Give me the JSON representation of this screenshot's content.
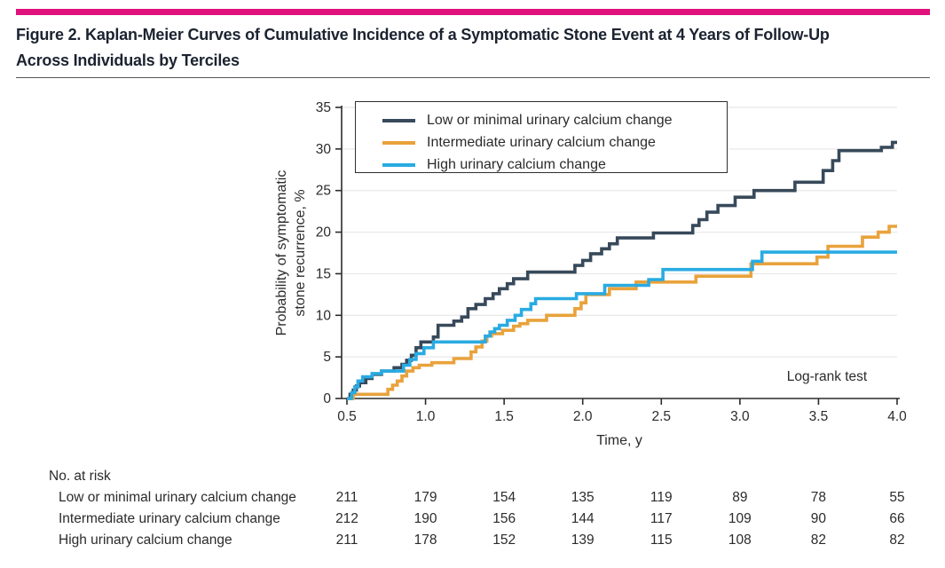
{
  "figure": {
    "title_line1": "Figure 2. Kaplan-Meier Curves of Cumulative Incidence of a Symptomatic Stone Event at 4 Years of Follow-Up",
    "title_line2": "Across Individuals by Terciles"
  },
  "colors": {
    "accent_bar": "#e0127c",
    "axis": "#2b2b2b",
    "gridline": "#e8e8e8",
    "title_text": "#1b2330"
  },
  "chart_data": {
    "type": "line",
    "subtype": "kaplan-meier-step",
    "title": "",
    "xlabel": "Time, y",
    "ylabel_lines": [
      "Probability of symptomatic",
      "stone recurrence, %"
    ],
    "xlim": [
      0.5,
      4.0
    ],
    "ylim": [
      0,
      35
    ],
    "x_ticks": [
      "0.5",
      "1.0",
      "1.5",
      "2.0",
      "2.5",
      "3.0",
      "3.5",
      "4.0"
    ],
    "y_ticks": [
      0,
      5,
      10,
      15,
      20,
      25,
      30,
      35
    ],
    "grid": "horizontal",
    "legend_position": "top-left-inside-box",
    "annotation": "Log-rank test",
    "series": [
      {
        "name": "Low or minimal urinary calcium change",
        "color": "#37495a",
        "steps": [
          [
            0.5,
            0
          ],
          [
            0.52,
            0.5
          ],
          [
            0.54,
            1.0
          ],
          [
            0.56,
            1.5
          ],
          [
            0.58,
            1.9
          ],
          [
            0.62,
            2.4
          ],
          [
            0.66,
            2.9
          ],
          [
            0.72,
            3.3
          ],
          [
            0.8,
            3.7
          ],
          [
            0.85,
            4.1
          ],
          [
            0.88,
            4.6
          ],
          [
            0.91,
            5.2
          ],
          [
            0.94,
            6.1
          ],
          [
            0.97,
            6.8
          ],
          [
            1.05,
            7.4
          ],
          [
            1.08,
            8.8
          ],
          [
            1.18,
            9.3
          ],
          [
            1.23,
            9.8
          ],
          [
            1.27,
            10.8
          ],
          [
            1.32,
            11.3
          ],
          [
            1.38,
            12.0
          ],
          [
            1.43,
            12.6
          ],
          [
            1.47,
            13.2
          ],
          [
            1.52,
            13.8
          ],
          [
            1.56,
            14.4
          ],
          [
            1.65,
            15.2
          ],
          [
            1.95,
            16.0
          ],
          [
            2.0,
            16.6
          ],
          [
            2.05,
            17.4
          ],
          [
            2.12,
            18.0
          ],
          [
            2.17,
            18.6
          ],
          [
            2.22,
            19.3
          ],
          [
            2.45,
            19.9
          ],
          [
            2.7,
            20.8
          ],
          [
            2.74,
            21.5
          ],
          [
            2.79,
            22.4
          ],
          [
            2.86,
            23.2
          ],
          [
            2.97,
            24.2
          ],
          [
            3.09,
            25.0
          ],
          [
            3.35,
            26.0
          ],
          [
            3.53,
            27.4
          ],
          [
            3.59,
            28.6
          ],
          [
            3.63,
            29.8
          ],
          [
            3.9,
            30.2
          ],
          [
            3.97,
            30.8
          ]
        ]
      },
      {
        "name": "Intermediate urinary calcium change",
        "color": "#e9a23b",
        "steps": [
          [
            0.5,
            0
          ],
          [
            0.54,
            0.5
          ],
          [
            0.76,
            1.1
          ],
          [
            0.79,
            1.6
          ],
          [
            0.82,
            2.1
          ],
          [
            0.85,
            2.7
          ],
          [
            0.88,
            3.3
          ],
          [
            0.92,
            3.7
          ],
          [
            0.96,
            4.0
          ],
          [
            1.04,
            4.3
          ],
          [
            1.18,
            4.8
          ],
          [
            1.29,
            5.6
          ],
          [
            1.32,
            6.2
          ],
          [
            1.36,
            6.9
          ],
          [
            1.39,
            7.5
          ],
          [
            1.42,
            7.8
          ],
          [
            1.49,
            8.2
          ],
          [
            1.56,
            8.7
          ],
          [
            1.6,
            9.0
          ],
          [
            1.65,
            9.4
          ],
          [
            1.77,
            10.0
          ],
          [
            1.95,
            10.8
          ],
          [
            1.99,
            11.5
          ],
          [
            2.02,
            12.5
          ],
          [
            2.17,
            13.2
          ],
          [
            2.34,
            14.0
          ],
          [
            2.72,
            14.7
          ],
          [
            3.07,
            16.2
          ],
          [
            3.49,
            17.0
          ],
          [
            3.56,
            18.3
          ],
          [
            3.78,
            19.4
          ],
          [
            3.88,
            20.0
          ],
          [
            3.95,
            20.7
          ]
        ]
      },
      {
        "name": "High urinary calcium change",
        "color": "#29abe2",
        "steps": [
          [
            0.5,
            0
          ],
          [
            0.53,
            0.7
          ],
          [
            0.55,
            1.4
          ],
          [
            0.57,
            2.1
          ],
          [
            0.6,
            2.6
          ],
          [
            0.66,
            3.0
          ],
          [
            0.72,
            3.3
          ],
          [
            0.86,
            4.0
          ],
          [
            0.9,
            4.7
          ],
          [
            0.94,
            5.4
          ],
          [
            0.99,
            6.1
          ],
          [
            1.05,
            6.8
          ],
          [
            1.38,
            7.5
          ],
          [
            1.41,
            8.0
          ],
          [
            1.44,
            8.4
          ],
          [
            1.47,
            8.8
          ],
          [
            1.52,
            9.4
          ],
          [
            1.57,
            10.0
          ],
          [
            1.61,
            10.7
          ],
          [
            1.67,
            11.4
          ],
          [
            1.7,
            12.0
          ],
          [
            1.96,
            12.6
          ],
          [
            2.14,
            13.6
          ],
          [
            2.42,
            14.3
          ],
          [
            2.51,
            15.5
          ],
          [
            3.08,
            16.5
          ],
          [
            3.14,
            17.6
          ]
        ]
      }
    ]
  },
  "risk_table": {
    "header": "No. at risk",
    "rows": [
      {
        "label": "Low or minimal urinary calcium change",
        "counts": [
          211,
          179,
          154,
          135,
          119,
          89,
          78,
          55
        ]
      },
      {
        "label": "Intermediate urinary calcium change",
        "counts": [
          212,
          190,
          156,
          144,
          117,
          109,
          90,
          66
        ]
      },
      {
        "label": "High urinary calcium change",
        "counts": [
          211,
          178,
          152,
          139,
          115,
          108,
          82,
          82
        ]
      }
    ]
  }
}
